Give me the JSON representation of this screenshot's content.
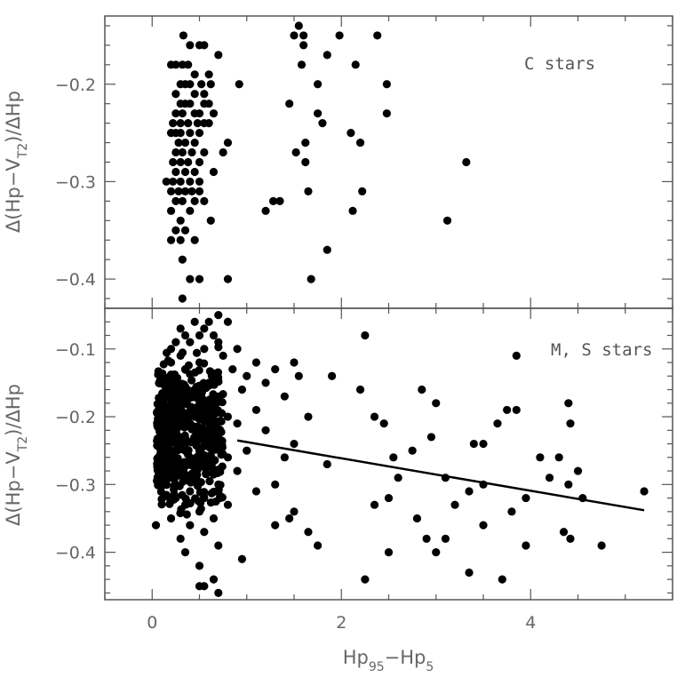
{
  "chart_data": [
    {
      "type": "scatter",
      "panel": "top",
      "annotation": "C stars",
      "ylabel": "Δ(Hp−V",
      "ylabel_sub": "T2",
      "ylabel_end": ")/ΔHp",
      "xlim": [
        -0.5,
        5.5
      ],
      "ylim": [
        -0.43,
        -0.13
      ],
      "x_ticks": [
        0,
        2,
        4
      ],
      "y_ticks": [
        -0.2,
        -0.3,
        -0.4
      ],
      "y_tick_labels": [
        "−0.2",
        "−0.3",
        "−0.4"
      ],
      "points": [
        [
          0.33,
          -0.15
        ],
        [
          0.5,
          -0.16
        ],
        [
          0.55,
          -0.16
        ],
        [
          0.4,
          -0.16
        ],
        [
          0.7,
          -0.17
        ],
        [
          0.2,
          -0.18
        ],
        [
          0.25,
          -0.18
        ],
        [
          0.32,
          -0.18
        ],
        [
          0.38,
          -0.18
        ],
        [
          0.45,
          -0.19
        ],
        [
          0.6,
          -0.19
        ],
        [
          0.3,
          -0.2
        ],
        [
          0.35,
          -0.2
        ],
        [
          0.4,
          -0.2
        ],
        [
          0.52,
          -0.2
        ],
        [
          0.62,
          -0.2
        ],
        [
          0.92,
          -0.2
        ],
        [
          0.25,
          -0.21
        ],
        [
          0.45,
          -0.21
        ],
        [
          0.55,
          -0.21
        ],
        [
          0.3,
          -0.22
        ],
        [
          0.35,
          -0.22
        ],
        [
          0.4,
          -0.22
        ],
        [
          0.55,
          -0.22
        ],
        [
          0.6,
          -0.22
        ],
        [
          0.25,
          -0.23
        ],
        [
          0.32,
          -0.23
        ],
        [
          0.45,
          -0.23
        ],
        [
          0.5,
          -0.23
        ],
        [
          0.65,
          -0.23
        ],
        [
          0.22,
          -0.24
        ],
        [
          0.3,
          -0.24
        ],
        [
          0.38,
          -0.24
        ],
        [
          0.48,
          -0.24
        ],
        [
          0.55,
          -0.24
        ],
        [
          0.6,
          -0.24
        ],
        [
          0.2,
          -0.25
        ],
        [
          0.25,
          -0.25
        ],
        [
          0.3,
          -0.25
        ],
        [
          0.4,
          -0.25
        ],
        [
          0.5,
          -0.25
        ],
        [
          0.28,
          -0.26
        ],
        [
          0.35,
          -0.26
        ],
        [
          0.45,
          -0.26
        ],
        [
          0.8,
          -0.26
        ],
        [
          0.25,
          -0.27
        ],
        [
          0.32,
          -0.27
        ],
        [
          0.42,
          -0.27
        ],
        [
          0.55,
          -0.27
        ],
        [
          0.75,
          -0.27
        ],
        [
          0.22,
          -0.28
        ],
        [
          0.3,
          -0.28
        ],
        [
          0.38,
          -0.28
        ],
        [
          0.5,
          -0.28
        ],
        [
          0.25,
          -0.29
        ],
        [
          0.35,
          -0.29
        ],
        [
          0.45,
          -0.29
        ],
        [
          0.65,
          -0.29
        ],
        [
          0.15,
          -0.3
        ],
        [
          0.22,
          -0.3
        ],
        [
          0.3,
          -0.3
        ],
        [
          0.4,
          -0.3
        ],
        [
          0.5,
          -0.3
        ],
        [
          0.2,
          -0.31
        ],
        [
          0.28,
          -0.31
        ],
        [
          0.35,
          -0.31
        ],
        [
          0.42,
          -0.31
        ],
        [
          0.5,
          -0.31
        ],
        [
          0.25,
          -0.32
        ],
        [
          0.32,
          -0.32
        ],
        [
          0.45,
          -0.32
        ],
        [
          0.55,
          -0.32
        ],
        [
          0.2,
          -0.33
        ],
        [
          0.4,
          -0.33
        ],
        [
          0.3,
          -0.34
        ],
        [
          0.62,
          -0.34
        ],
        [
          0.25,
          -0.35
        ],
        [
          0.35,
          -0.35
        ],
        [
          0.2,
          -0.36
        ],
        [
          0.3,
          -0.36
        ],
        [
          0.45,
          -0.36
        ],
        [
          0.32,
          -0.38
        ],
        [
          0.4,
          -0.4
        ],
        [
          0.5,
          -0.4
        ],
        [
          0.8,
          -0.4
        ],
        [
          0.32,
          -0.42
        ],
        [
          1.55,
          -0.14
        ],
        [
          1.5,
          -0.15
        ],
        [
          1.6,
          -0.15
        ],
        [
          1.98,
          -0.15
        ],
        [
          2.38,
          -0.15
        ],
        [
          1.6,
          -0.16
        ],
        [
          1.85,
          -0.17
        ],
        [
          1.58,
          -0.18
        ],
        [
          2.15,
          -0.18
        ],
        [
          1.75,
          -0.2
        ],
        [
          2.48,
          -0.2
        ],
        [
          1.45,
          -0.22
        ],
        [
          1.75,
          -0.23
        ],
        [
          2.48,
          -0.23
        ],
        [
          1.8,
          -0.24
        ],
        [
          2.1,
          -0.25
        ],
        [
          1.62,
          -0.26
        ],
        [
          2.2,
          -0.26
        ],
        [
          1.52,
          -0.27
        ],
        [
          1.62,
          -0.28
        ],
        [
          3.32,
          -0.28
        ],
        [
          1.65,
          -0.31
        ],
        [
          2.22,
          -0.31
        ],
        [
          1.28,
          -0.32
        ],
        [
          1.35,
          -0.32
        ],
        [
          1.2,
          -0.33
        ],
        [
          2.12,
          -0.33
        ],
        [
          3.12,
          -0.34
        ],
        [
          1.85,
          -0.37
        ],
        [
          1.68,
          -0.4
        ]
      ]
    },
    {
      "type": "scatter",
      "panel": "bottom",
      "annotation": "M, S stars",
      "ylabel": "Δ(Hp−V",
      "ylabel_sub": "T2",
      "ylabel_end": ")/ΔHp",
      "xlabel": "Hp",
      "xlabel_sub1": "95",
      "xlabel_mid": "−Hp",
      "xlabel_sub2": "5",
      "xlim": [
        -0.5,
        5.5
      ],
      "ylim": [
        -0.47,
        -0.04
      ],
      "x_ticks": [
        0,
        2,
        4
      ],
      "x_tick_labels": [
        "0",
        "2",
        "4"
      ],
      "y_ticks": [
        -0.1,
        -0.2,
        -0.3,
        -0.4
      ],
      "y_tick_labels": [
        "−0.1",
        "−0.2",
        "−0.3",
        "−0.4"
      ],
      "fit_line": {
        "x": [
          0.9,
          5.2
        ],
        "y": [
          -0.235,
          -0.338
        ]
      },
      "points": [
        [
          0.7,
          -0.05
        ],
        [
          0.45,
          -0.06
        ],
        [
          0.8,
          -0.06
        ],
        [
          0.3,
          -0.07
        ],
        [
          0.55,
          -0.07
        ],
        [
          0.6,
          -0.06
        ],
        [
          0.35,
          -0.08
        ],
        [
          0.5,
          -0.08
        ],
        [
          0.65,
          -0.08
        ],
        [
          2.25,
          -0.08
        ],
        [
          0.25,
          -0.09
        ],
        [
          0.4,
          -0.09
        ],
        [
          0.7,
          -0.09
        ],
        [
          0.2,
          -0.1
        ],
        [
          0.55,
          -0.1
        ],
        [
          0.9,
          -0.1
        ],
        [
          3.85,
          -0.11
        ],
        [
          0.3,
          -0.11
        ],
        [
          0.75,
          -0.11
        ],
        [
          1.1,
          -0.12
        ],
        [
          0.2,
          -0.12
        ],
        [
          0.5,
          -0.12
        ],
        [
          1.5,
          -0.12
        ],
        [
          0.35,
          -0.13
        ],
        [
          0.85,
          -0.13
        ],
        [
          1.3,
          -0.13
        ],
        [
          1.55,
          -0.14
        ],
        [
          1.9,
          -0.14
        ],
        [
          1.0,
          -0.14
        ],
        [
          0.25,
          -0.15
        ],
        [
          0.6,
          -0.15
        ],
        [
          1.2,
          -0.15
        ],
        [
          0.15,
          -0.16
        ],
        [
          0.45,
          -0.16
        ],
        [
          0.95,
          -0.16
        ],
        [
          2.2,
          -0.16
        ],
        [
          2.85,
          -0.16
        ],
        [
          1.4,
          -0.17
        ],
        [
          0.3,
          -0.17
        ],
        [
          0.7,
          -0.17
        ],
        [
          4.4,
          -0.18
        ],
        [
          3.0,
          -0.18
        ],
        [
          0.1,
          -0.19
        ],
        [
          0.5,
          -0.19
        ],
        [
          1.1,
          -0.19
        ],
        [
          3.75,
          -0.19
        ],
        [
          3.85,
          -0.19
        ],
        [
          2.35,
          -0.2
        ],
        [
          1.65,
          -0.2
        ],
        [
          0.2,
          -0.2
        ],
        [
          0.8,
          -0.2
        ],
        [
          0.4,
          -0.21
        ],
        [
          0.9,
          -0.21
        ],
        [
          2.45,
          -0.21
        ],
        [
          4.42,
          -0.21
        ],
        [
          3.65,
          -0.21
        ],
        [
          0.15,
          -0.22
        ],
        [
          0.6,
          -0.22
        ],
        [
          1.2,
          -0.22
        ],
        [
          0.25,
          -0.23
        ],
        [
          0.7,
          -0.23
        ],
        [
          2.95,
          -0.23
        ],
        [
          1.5,
          -0.24
        ],
        [
          0.35,
          -0.24
        ],
        [
          3.4,
          -0.24
        ],
        [
          3.5,
          -0.24
        ],
        [
          0.5,
          -0.25
        ],
        [
          1.0,
          -0.25
        ],
        [
          2.75,
          -0.25
        ],
        [
          1.4,
          -0.26
        ],
        [
          0.2,
          -0.26
        ],
        [
          0.8,
          -0.26
        ],
        [
          2.55,
          -0.26
        ],
        [
          4.1,
          -0.26
        ],
        [
          4.3,
          -0.26
        ],
        [
          1.85,
          -0.27
        ],
        [
          0.3,
          -0.27
        ],
        [
          0.6,
          -0.27
        ],
        [
          4.5,
          -0.28
        ],
        [
          0.45,
          -0.28
        ],
        [
          0.9,
          -0.28
        ],
        [
          2.6,
          -0.29
        ],
        [
          3.1,
          -0.29
        ],
        [
          4.2,
          -0.29
        ],
        [
          0.15,
          -0.29
        ],
        [
          0.7,
          -0.3
        ],
        [
          1.3,
          -0.3
        ],
        [
          3.5,
          -0.3
        ],
        [
          4.4,
          -0.3
        ],
        [
          0.4,
          -0.31
        ],
        [
          1.1,
          -0.31
        ],
        [
          3.35,
          -0.31
        ],
        [
          5.2,
          -0.31
        ],
        [
          0.25,
          -0.32
        ],
        [
          0.55,
          -0.32
        ],
        [
          2.5,
          -0.32
        ],
        [
          3.95,
          -0.32
        ],
        [
          4.55,
          -0.32
        ],
        [
          0.35,
          -0.33
        ],
        [
          0.8,
          -0.33
        ],
        [
          2.35,
          -0.33
        ],
        [
          3.2,
          -0.33
        ],
        [
          0.5,
          -0.34
        ],
        [
          1.5,
          -0.34
        ],
        [
          3.8,
          -0.34
        ],
        [
          0.2,
          -0.35
        ],
        [
          0.65,
          -0.35
        ],
        [
          1.45,
          -0.35
        ],
        [
          2.8,
          -0.35
        ],
        [
          0.04,
          -0.36
        ],
        [
          0.4,
          -0.36
        ],
        [
          1.3,
          -0.36
        ],
        [
          3.5,
          -0.36
        ],
        [
          0.55,
          -0.37
        ],
        [
          1.65,
          -0.37
        ],
        [
          4.35,
          -0.37
        ],
        [
          0.3,
          -0.38
        ],
        [
          2.9,
          -0.38
        ],
        [
          3.1,
          -0.38
        ],
        [
          4.42,
          -0.38
        ],
        [
          0.7,
          -0.39
        ],
        [
          1.75,
          -0.39
        ],
        [
          3.95,
          -0.39
        ],
        [
          4.75,
          -0.39
        ],
        [
          0.35,
          -0.4
        ],
        [
          2.5,
          -0.4
        ],
        [
          3.0,
          -0.4
        ],
        [
          0.95,
          -0.41
        ],
        [
          0.5,
          -0.42
        ],
        [
          3.35,
          -0.43
        ],
        [
          0.65,
          -0.44
        ],
        [
          2.25,
          -0.44
        ],
        [
          3.7,
          -0.44
        ],
        [
          0.5,
          -0.45
        ],
        [
          0.55,
          -0.45
        ],
        [
          0.7,
          -0.46
        ]
      ],
      "dense_cluster": {
        "x_range": [
          0.05,
          0.75
        ],
        "y_range": [
          -0.38,
          -0.08
        ],
        "count": 520,
        "seed": 7
      }
    }
  ]
}
